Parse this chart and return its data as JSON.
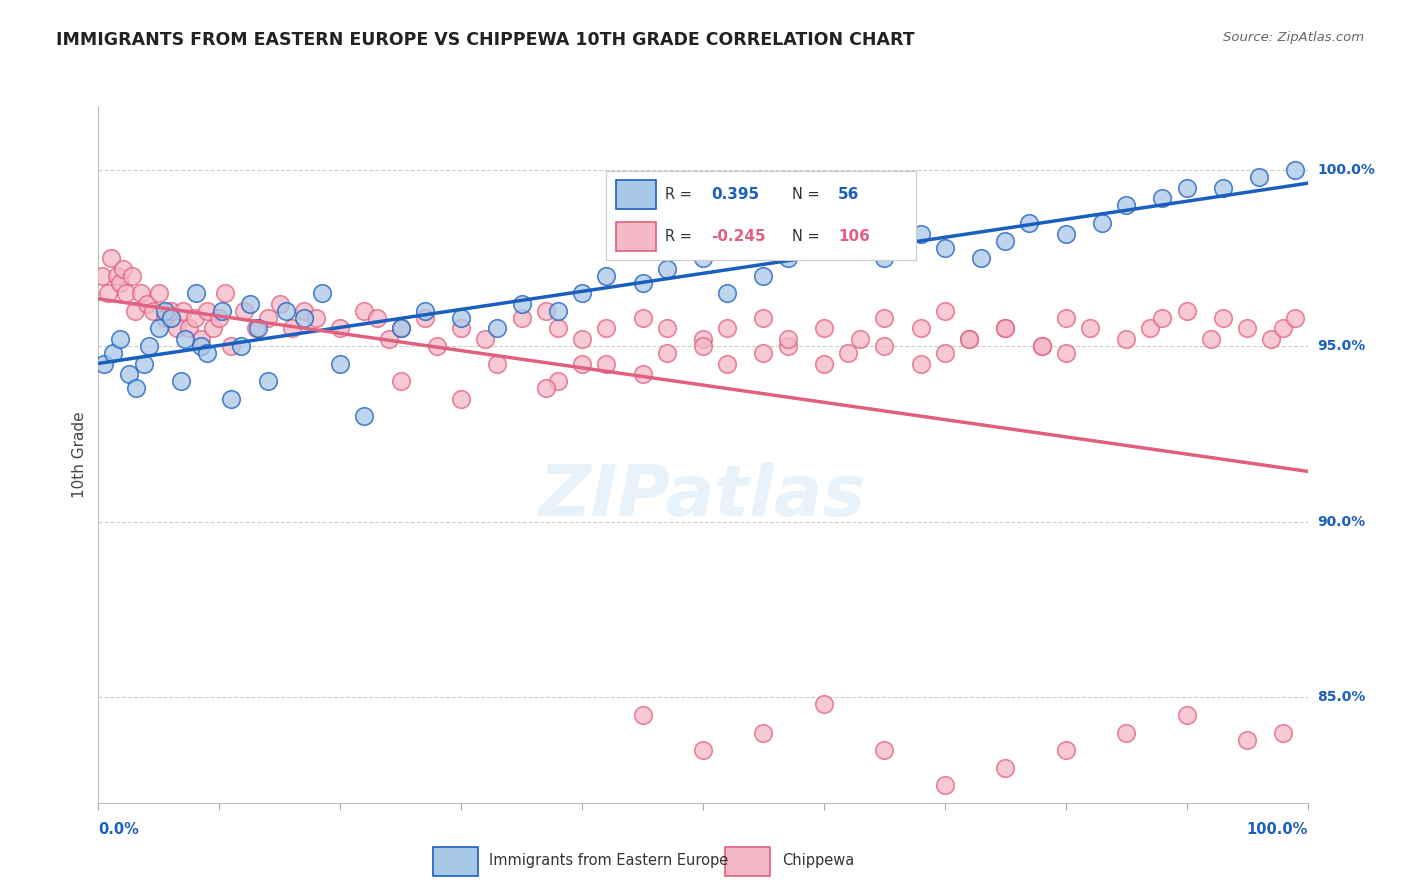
{
  "title": "IMMIGRANTS FROM EASTERN EUROPE VS CHIPPEWA 10TH GRADE CORRELATION CHART",
  "source": "Source: ZipAtlas.com",
  "ylabel": "10th Grade",
  "r_blue": 0.395,
  "n_blue": 56,
  "r_pink": -0.245,
  "n_pink": 106,
  "legend_blue": "Immigrants from Eastern Europe",
  "legend_pink": "Chippewa",
  "blue_color": "#a8c8e8",
  "pink_color": "#f4b8c8",
  "blue_line_color": "#1a5fbd",
  "pink_line_color": "#e06080",
  "background_color": "#ffffff",
  "blue_scatter_x": [
    0.5,
    1.2,
    1.8,
    2.5,
    3.1,
    3.8,
    4.2,
    5.0,
    5.5,
    6.0,
    6.8,
    7.2,
    8.1,
    8.5,
    9.0,
    10.2,
    11.0,
    11.8,
    12.5,
    13.2,
    14.0,
    15.5,
    17.0,
    18.5,
    20.0,
    22.0,
    25.0,
    27.0,
    30.0,
    33.0,
    35.0,
    38.0,
    40.0,
    42.0,
    45.0,
    47.0,
    50.0,
    52.0,
    55.0,
    57.0,
    60.0,
    62.0,
    65.0,
    68.0,
    70.0,
    73.0,
    75.0,
    77.0,
    80.0,
    83.0,
    85.0,
    88.0,
    90.0,
    93.0,
    96.0,
    99.0
  ],
  "blue_scatter_y": [
    94.5,
    94.8,
    95.2,
    94.2,
    93.8,
    94.5,
    95.0,
    95.5,
    96.0,
    95.8,
    94.0,
    95.2,
    96.5,
    95.0,
    94.8,
    96.0,
    93.5,
    95.0,
    96.2,
    95.5,
    94.0,
    96.0,
    95.8,
    96.5,
    94.5,
    93.0,
    95.5,
    96.0,
    95.8,
    95.5,
    96.2,
    96.0,
    96.5,
    97.0,
    96.8,
    97.2,
    97.5,
    96.5,
    97.0,
    97.5,
    97.8,
    98.0,
    97.5,
    98.2,
    97.8,
    97.5,
    98.0,
    98.5,
    98.2,
    98.5,
    99.0,
    99.2,
    99.5,
    99.5,
    99.8,
    100.0
  ],
  "pink_scatter_x": [
    0.3,
    0.8,
    1.0,
    1.5,
    1.8,
    2.0,
    2.3,
    2.8,
    3.0,
    3.5,
    4.0,
    4.5,
    5.0,
    5.5,
    6.0,
    6.5,
    7.0,
    7.5,
    8.0,
    8.5,
    9.0,
    9.5,
    10.0,
    10.5,
    11.0,
    12.0,
    13.0,
    14.0,
    15.0,
    16.0,
    17.0,
    18.0,
    20.0,
    22.0,
    23.0,
    24.0,
    25.0,
    27.0,
    28.0,
    30.0,
    32.0,
    35.0,
    37.0,
    38.0,
    40.0,
    42.0,
    45.0,
    47.0,
    50.0,
    52.0,
    55.0,
    57.0,
    60.0,
    63.0,
    65.0,
    68.0,
    70.0,
    72.0,
    75.0,
    78.0,
    80.0,
    82.0,
    85.0,
    87.0,
    88.0,
    90.0,
    92.0,
    93.0,
    95.0,
    97.0,
    98.0,
    99.0,
    60.0,
    62.0,
    65.0,
    68.0,
    70.0,
    72.0,
    75.0,
    78.0,
    80.0,
    42.0,
    45.0,
    47.0,
    50.0,
    52.0,
    55.0,
    57.0,
    38.0,
    40.0,
    45.0,
    50.0,
    55.0,
    60.0,
    65.0,
    70.0,
    75.0,
    80.0,
    85.0,
    90.0,
    95.0,
    98.0,
    30.0,
    25.0,
    33.0,
    37.0
  ],
  "pink_scatter_y": [
    97.0,
    96.5,
    97.5,
    97.0,
    96.8,
    97.2,
    96.5,
    97.0,
    96.0,
    96.5,
    96.2,
    96.0,
    96.5,
    95.8,
    96.0,
    95.5,
    96.0,
    95.5,
    95.8,
    95.2,
    96.0,
    95.5,
    95.8,
    96.5,
    95.0,
    96.0,
    95.5,
    95.8,
    96.2,
    95.5,
    96.0,
    95.8,
    95.5,
    96.0,
    95.8,
    95.2,
    95.5,
    95.8,
    95.0,
    95.5,
    95.2,
    95.8,
    96.0,
    95.5,
    95.2,
    95.5,
    95.8,
    95.5,
    95.2,
    95.5,
    95.8,
    95.0,
    95.5,
    95.2,
    95.8,
    95.5,
    96.0,
    95.2,
    95.5,
    95.0,
    95.8,
    95.5,
    95.2,
    95.5,
    95.8,
    96.0,
    95.2,
    95.8,
    95.5,
    95.2,
    95.5,
    95.8,
    94.5,
    94.8,
    95.0,
    94.5,
    94.8,
    95.2,
    95.5,
    95.0,
    94.8,
    94.5,
    94.2,
    94.8,
    95.0,
    94.5,
    94.8,
    95.2,
    94.0,
    94.5,
    84.5,
    83.5,
    84.0,
    84.8,
    83.5,
    82.5,
    83.0,
    83.5,
    84.0,
    84.5,
    83.8,
    84.0,
    93.5,
    94.0,
    94.5,
    93.8
  ]
}
